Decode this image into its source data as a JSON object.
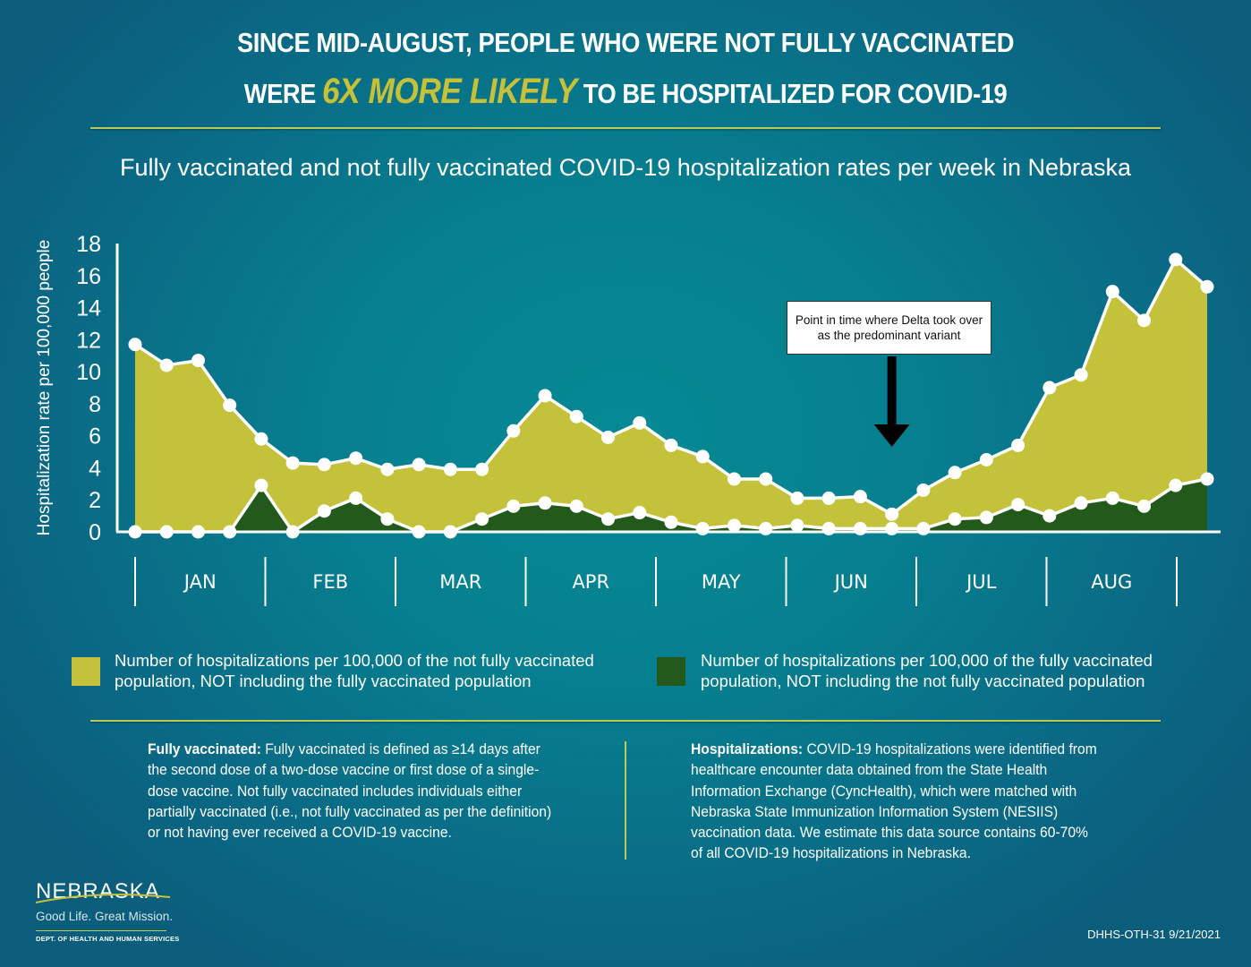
{
  "headline": {
    "line1": "SINCE MID-AUGUST, PEOPLE WHO WERE NOT FULLY VACCINATED",
    "line2_prefix": "WERE",
    "line2_highlight": "6X MORE LIKELY",
    "line2_suffix": "TO BE HOSPITALIZED FOR COVID-19"
  },
  "colors": {
    "not_fully_vaccinated": "#c4c23a",
    "fully_vaccinated": "#235a1c",
    "highlight": "#c7c13a",
    "rule": "#b9c95a"
  },
  "chart_data": {
    "type": "area",
    "title": "Fully vaccinated and not fully vaccinated COVID-19 hospitalization rates per week in Nebraska",
    "xlabel": "",
    "ylabel": "Hospitalization rate per 100,000 people",
    "ylim": [
      0,
      18
    ],
    "yticks": [
      0,
      2,
      4,
      6,
      8,
      10,
      12,
      14,
      16,
      18
    ],
    "grid": false,
    "x_unit": "week",
    "x": [
      1,
      2,
      3,
      4,
      5,
      6,
      7,
      8,
      9,
      10,
      11,
      12,
      13,
      14,
      15,
      16,
      17,
      18,
      19,
      20,
      21,
      22,
      23,
      24,
      25,
      26,
      27,
      28,
      29,
      30,
      31,
      32,
      33,
      34,
      35
    ],
    "month_labels": [
      "JAN",
      "FEB",
      "MAR",
      "APR",
      "MAY",
      "JUN",
      "JUL",
      "AUG"
    ],
    "series": [
      {
        "name": "Number of hospitalizations per 100,000 of the not fully vaccinated population, NOT including the fully vaccinated population",
        "key": "not_fully_vaccinated",
        "values": [
          11.7,
          10.4,
          10.7,
          7.9,
          5.8,
          4.3,
          4.2,
          4.6,
          3.9,
          4.2,
          3.9,
          3.9,
          6.3,
          8.5,
          7.2,
          5.9,
          6.8,
          5.4,
          4.7,
          3.3,
          3.3,
          2.1,
          2.1,
          2.2,
          1.1,
          2.6,
          3.7,
          4.5,
          5.4,
          9.0,
          9.8,
          15.0,
          13.2,
          17.0,
          15.3
        ]
      },
      {
        "name": "Number of hospitalizations per 100,000 of the fully vaccinated population, NOT including the not fully vaccinated population",
        "key": "fully_vaccinated",
        "values": [
          0,
          0,
          0,
          0,
          2.9,
          0,
          1.3,
          2.1,
          0.8,
          0,
          0,
          0.8,
          1.6,
          1.8,
          1.6,
          0.8,
          1.2,
          0.6,
          0.2,
          0.4,
          0.2,
          0.4,
          0.2,
          0.2,
          0.2,
          0.2,
          0.8,
          0.9,
          1.7,
          1.0,
          1.8,
          2.1,
          1.6,
          2.9,
          3.3
        ]
      }
    ],
    "annotations": [
      {
        "text": "Point in time where Delta took over as the predominant variant",
        "x_week": 25
      }
    ],
    "legend_placement": "bottom"
  },
  "annotation_text": "Point in time where Delta took over as the predominant variant",
  "legend": {
    "item1": "Number of hospitalizations per 100,000 of the not fully vaccinated population, NOT including the fully vaccinated population",
    "item2": "Number of hospitalizations per 100,000 of the fully vaccinated population, NOT including the not fully vaccinated population"
  },
  "notes": {
    "fully_vaccinated_label": "Fully vaccinated:",
    "fully_vaccinated_text": " Fully vaccinated is defined as ≥14 days after the second dose of a two-dose vaccine or first dose of a single-dose vaccine. Not fully vaccinated includes individuals either partially vaccinated (i.e., not fully vaccinated as per the definition) or not having ever received a COVID-19 vaccine.",
    "hospitalizations_label": "Hospitalizations:",
    "hospitalizations_text": " COVID-19 hospitalizations were identified from healthcare encounter data obtained from the State Health Information Exchange (CyncHealth), which were matched with Nebraska State Immunization Information System (NESIIS) vaccination data. We estimate this data source contains 60-70% of all COVID-19 hospitalizations in Nebraska."
  },
  "logo": {
    "name": "NEBRASKA",
    "tagline": "Good Life. Great Mission.",
    "dept": "DEPT. OF HEALTH AND HUMAN SERVICES"
  },
  "footer": {
    "doc_id": "DHHS-OTH-31  9/21/2021"
  }
}
